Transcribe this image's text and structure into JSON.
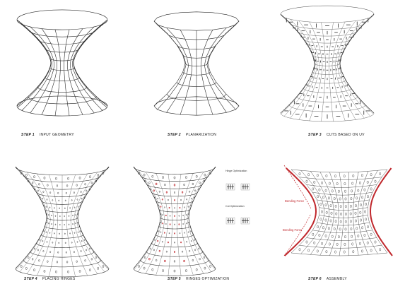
{
  "steps": [
    {
      "num": "STEP 1",
      "label": "INPUT GEOMETRY"
    },
    {
      "num": "STEP 2",
      "label": "PLANARIZATION"
    },
    {
      "num": "STEP 3",
      "label": "CUTS BASED ON UV"
    },
    {
      "num": "STEP 4",
      "label": "PLACING HINGES"
    },
    {
      "num": "STEP 5",
      "label": "HINGES OPTIMIZATION"
    },
    {
      "num": "STEP 6",
      "label": "ASSEMBLY"
    }
  ],
  "legend": {
    "top_label": "Hinge Optimization",
    "bottom_label": "Cut Optimization"
  },
  "annotations": {
    "bending_force_top": "Bending Force",
    "bending_force_bottom": "Bending Force"
  },
  "colors": {
    "line": "#2a2a2a",
    "accent": "#c0282d"
  }
}
